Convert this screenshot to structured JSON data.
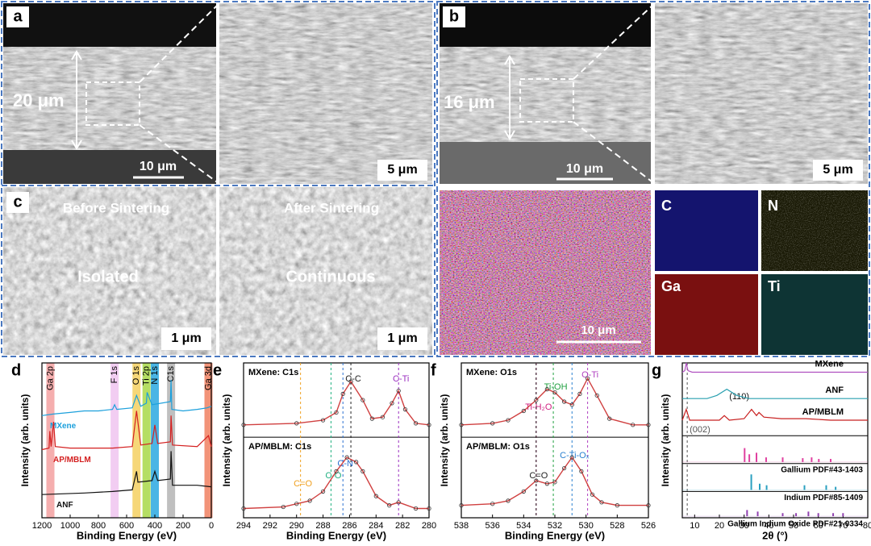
{
  "figure": {
    "a": {
      "label": "a",
      "thickness": "20 μm",
      "scale": "10 μm",
      "zoom_scale": "5 μm"
    },
    "b": {
      "label": "b",
      "thickness": "16 μm",
      "scale": "10 μm",
      "zoom_scale": "5 μm"
    },
    "c": {
      "label": "c",
      "left_title": "Before Sintering",
      "right_title": "After Sintering",
      "left_text": "Isolated",
      "right_text": "Continuous",
      "left_scale": "1 μm",
      "right_scale": "1 μm"
    },
    "eds": {
      "scale": "10 μm",
      "maps": [
        "C",
        "N",
        "Ga",
        "Ti"
      ]
    }
  },
  "chart_data": [
    {
      "type": "line",
      "label": "d",
      "xlabel": "Binding Energy (eV)",
      "ylabel": "Intensity (arb. units)",
      "xlim": [
        1200,
        0
      ],
      "xticks": [
        1200,
        1000,
        800,
        600,
        400,
        200,
        0
      ],
      "ylim": [
        0,
        10
      ],
      "annotation_style": "band",
      "annotations": [
        {
          "text": "Ga 2p",
          "x": 1140,
          "color": "#f3a0a0"
        },
        {
          "text": "F 1s",
          "x": 685,
          "color": "#f0c4f0"
        },
        {
          "text": "O 1s",
          "x": 530,
          "color": "#f5d060"
        },
        {
          "text": "Ti 2p",
          "x": 459,
          "color": "#a8d848"
        },
        {
          "text": "N 1s",
          "x": 400,
          "color": "#2aa8e0"
        },
        {
          "text": "C1s",
          "x": 285,
          "color": "#b4b4b4"
        },
        {
          "text": "Ga 3d",
          "x": 20,
          "color": "#f08060"
        }
      ],
      "series": [
        {
          "name": "MXene",
          "color": "#1ca0dc",
          "x": [
            1200,
            1120,
            1000,
            900,
            800,
            700,
            685,
            670,
            560,
            530,
            500,
            460,
            455,
            420,
            290,
            285,
            280,
            200,
            100,
            30,
            0
          ],
          "values": [
            6.6,
            6.7,
            6.8,
            6.9,
            6.9,
            7.0,
            7.3,
            7.0,
            7.1,
            7.9,
            7.2,
            7.4,
            8.1,
            7.3,
            7.5,
            8.9,
            7.0,
            6.9,
            7.0,
            7.1,
            7.2
          ]
        },
        {
          "name": "AP/MBLM",
          "color": "#d42020",
          "x": [
            1200,
            1150,
            1144,
            1135,
            1117,
            1105,
            1000,
            800,
            700,
            560,
            530,
            500,
            420,
            400,
            380,
            290,
            285,
            275,
            100,
            20,
            0
          ],
          "values": [
            4.4,
            4.5,
            5.6,
            4.6,
            6.2,
            4.6,
            4.5,
            4.5,
            4.5,
            4.6,
            6.9,
            4.7,
            4.8,
            6.0,
            4.8,
            4.9,
            6.6,
            4.7,
            4.6,
            5.3,
            4.6
          ]
        },
        {
          "name": "ANF",
          "color": "#111111",
          "x": [
            1200,
            900,
            700,
            560,
            530,
            520,
            420,
            400,
            380,
            290,
            285,
            275,
            100,
            0
          ],
          "values": [
            1.5,
            1.6,
            1.7,
            1.8,
            3.0,
            2.3,
            2.4,
            3.0,
            2.4,
            2.5,
            4.3,
            2.1,
            2.1,
            2.0
          ]
        }
      ]
    },
    {
      "type": "line",
      "label": "e",
      "xlabel": "Binding Energy (eV)",
      "ylabel": "Intensity (arb. units)",
      "xlim": [
        294,
        280
      ],
      "xticks": [
        294,
        292,
        290,
        288,
        286,
        284,
        282,
        280
      ],
      "ylim": [
        0,
        10
      ],
      "divider": 5.2,
      "subtitles": [
        "MXene: C1s",
        "AP/MBLM: C1s"
      ],
      "annotation_style": "line",
      "annotations": [
        {
          "text": "C-C",
          "x": 285.9,
          "color": "#222222"
        },
        {
          "text": "C-Ti",
          "x": 282.3,
          "color": "#9b2fc0"
        },
        {
          "text": "C-N",
          "x": 286.5,
          "color": "#2a70d0"
        },
        {
          "text": "C-O",
          "x": 287.4,
          "color": "#20b080"
        },
        {
          "text": "C=O",
          "x": 289.7,
          "color": "#f0a020"
        }
      ],
      "series": [
        {
          "color": "#d04040",
          "x": [
            294,
            290,
            288,
            287,
            286.5,
            285.9,
            285,
            284.3,
            283.5,
            282.8,
            282.3,
            281.8,
            281,
            280
          ],
          "values": [
            6.0,
            6.1,
            6.3,
            6.8,
            8.0,
            8.8,
            7.6,
            6.4,
            6.5,
            7.4,
            8.2,
            7.0,
            6.1,
            6.0
          ]
        },
        {
          "color": "#d04040",
          "x": [
            294,
            291,
            290,
            289,
            288,
            287,
            286.2,
            285.5,
            285,
            284,
            283,
            282.3,
            281,
            280
          ],
          "values": [
            0.6,
            0.7,
            0.9,
            1.1,
            1.7,
            3.0,
            3.9,
            3.6,
            3.0,
            1.4,
            0.8,
            1.0,
            0.6,
            0.6
          ]
        }
      ]
    },
    {
      "type": "line",
      "label": "f",
      "xlabel": "Binding Energy (eV)",
      "ylabel": "Intensity (arb. units)",
      "xlim": [
        538,
        526
      ],
      "xticks": [
        538,
        536,
        534,
        532,
        530,
        528,
        526
      ],
      "ylim": [
        0,
        10
      ],
      "divider": 5.2,
      "subtitles": [
        "MXene: O1s",
        "AP/MBLM: O1s"
      ],
      "annotation_style": "line",
      "annotations": [
        {
          "text": "O-Ti",
          "x": 529.9,
          "color": "#b040c0"
        },
        {
          "text": "Ti-OH",
          "x": 532.1,
          "color": "#20a040"
        },
        {
          "text": "Ti-H₂O",
          "x": 533.2,
          "color": "#d02080"
        },
        {
          "text": "C=O",
          "x": 533.2,
          "color": "#222222"
        },
        {
          "text": "C-Ti-Oₓ",
          "x": 530.9,
          "color": "#2a80d0"
        }
      ],
      "series": [
        {
          "color": "#d04040",
          "x": [
            538,
            536,
            535,
            534,
            533.2,
            532.5,
            532,
            531.4,
            530.9,
            530.4,
            529.9,
            529.3,
            528.5,
            527,
            526
          ],
          "values": [
            6.0,
            6.1,
            6.3,
            6.9,
            7.6,
            8.3,
            8.1,
            7.5,
            7.3,
            8.0,
            9.0,
            7.9,
            6.4,
            6.0,
            6.0
          ]
        },
        {
          "color": "#d04040",
          "x": [
            538,
            536,
            535,
            534,
            533.2,
            532.5,
            532,
            531.4,
            530.9,
            530.3,
            529.6,
            529,
            528,
            526
          ],
          "values": [
            0.8,
            0.9,
            1.1,
            1.7,
            2.4,
            2.2,
            2.3,
            3.2,
            3.9,
            3.0,
            1.5,
            1.0,
            0.8,
            0.8
          ]
        }
      ]
    },
    {
      "type": "line",
      "label": "g",
      "xlabel": "2θ (°)",
      "ylabel": "Intensity (arb. units)",
      "xlim": [
        5,
        80
      ],
      "xticks": [
        10,
        20,
        30,
        40,
        50,
        60,
        70,
        80
      ],
      "ylim": [
        0,
        10
      ],
      "dividers": [
        5.3,
        3.5,
        1.7
      ],
      "annotation_style": "line",
      "annotations": [
        {
          "text": "(002)",
          "x": 7,
          "color": "#555555",
          "dashed": true
        },
        {
          "text": "(110)",
          "x": 23,
          "color": "#111111",
          "dashed": false
        }
      ],
      "series": [
        {
          "name": "MXene",
          "color": "#b050c0",
          "x": [
            5,
            6,
            6.6,
            7.3,
            9,
            20,
            40,
            60,
            80
          ],
          "values": [
            9.4,
            9.5,
            10.0,
            9.5,
            9.4,
            9.4,
            9.4,
            9.4,
            9.4
          ]
        },
        {
          "name": "ANF",
          "color": "#2aa0b0",
          "x": [
            5,
            15,
            19,
            23,
            27,
            32,
            50,
            80
          ],
          "values": [
            7.7,
            7.7,
            7.9,
            8.3,
            7.9,
            7.7,
            7.7,
            7.7
          ]
        },
        {
          "name": "AP/MBLM",
          "color": "#c82020",
          "x": [
            5,
            6.6,
            8,
            20,
            22,
            24,
            30,
            33,
            35,
            36,
            38,
            45,
            55,
            65,
            80
          ],
          "values": [
            6.3,
            7.0,
            6.3,
            6.3,
            6.6,
            6.3,
            6.4,
            7.0,
            6.6,
            6.8,
            6.5,
            6.4,
            6.4,
            6.3,
            6.3
          ]
        },
        {
          "type": "sticks",
          "name": "Gallium PDF#43-1403",
          "color": "#e040a0",
          "base": 3.6,
          "x": [
            30.2,
            32.1,
            35.0,
            38.9,
            45.6,
            53.7,
            57.3,
            60.2,
            65.0
          ],
          "values": [
            0.9,
            0.5,
            0.6,
            0.3,
            0.3,
            0.25,
            0.3,
            0.2,
            0.2
          ]
        },
        {
          "type": "sticks",
          "name": "Indium PDF#85-1409",
          "color": "#2aa0c0",
          "base": 1.8,
          "x": [
            32.9,
            36.3,
            39.1,
            54.4,
            63.2,
            67.0
          ],
          "values": [
            1.0,
            0.4,
            0.3,
            0.3,
            0.3,
            0.2
          ]
        },
        {
          "type": "sticks",
          "name": "Gallium Indium Oxide PDF#21-0334",
          "color": "#9040b0",
          "base": 0.1,
          "x": [
            31.2,
            35.5,
            45.6,
            51.0,
            56.0,
            60.0,
            66.0,
            70.0
          ],
          "values": [
            0.4,
            0.3,
            0.2,
            0.2,
            0.3,
            0.2,
            0.2,
            0.2
          ]
        }
      ]
    }
  ]
}
